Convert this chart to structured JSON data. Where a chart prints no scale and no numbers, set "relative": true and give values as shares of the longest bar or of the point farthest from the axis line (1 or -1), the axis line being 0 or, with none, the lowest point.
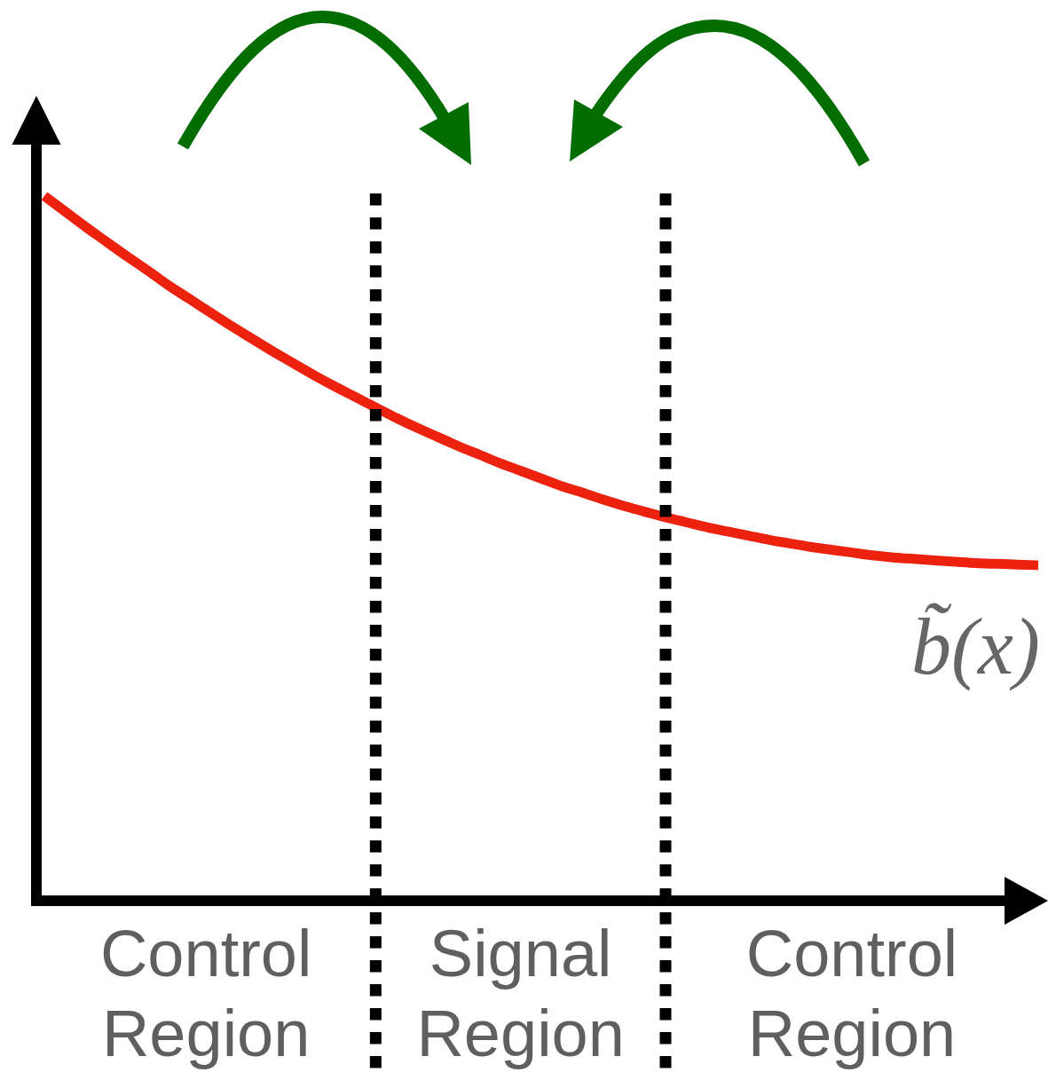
{
  "chart_data": {
    "type": "line",
    "relative": true,
    "categories": [
      null,
      null,
      null,
      null,
      null,
      null,
      null,
      null,
      null,
      null,
      null,
      null,
      null,
      null,
      null,
      null,
      null,
      null,
      null,
      null,
      null,
      null,
      null,
      null,
      null,
      null,
      null,
      null,
      null,
      null,
      null,
      null,
      null,
      null,
      null,
      null,
      null,
      null,
      null,
      null,
      null,
      null,
      null,
      null,
      null,
      null,
      null,
      null,
      null
    ],
    "series": [
      {
        "name": "b̃(x)",
        "color": "#ec210e",
        "values": [
          1.0,
          0.978,
          0.956,
          0.935,
          0.914,
          0.894,
          0.873,
          0.854,
          0.835,
          0.816,
          0.798,
          0.78,
          0.763,
          0.746,
          0.73,
          0.715,
          0.7,
          0.685,
          0.671,
          0.658,
          0.645,
          0.633,
          0.621,
          0.61,
          0.599,
          0.588,
          0.579,
          0.569,
          0.56,
          0.552,
          0.544,
          0.537,
          0.53,
          0.524,
          0.518,
          0.512,
          0.507,
          0.502,
          0.498,
          0.494,
          0.49,
          0.487,
          0.485,
          0.483,
          0.481,
          0.479,
          0.478,
          0.477,
          0.476
        ]
      }
    ],
    "annotations": [
      "Control Region",
      "Signal Region",
      "Control Region"
    ]
  }
}
